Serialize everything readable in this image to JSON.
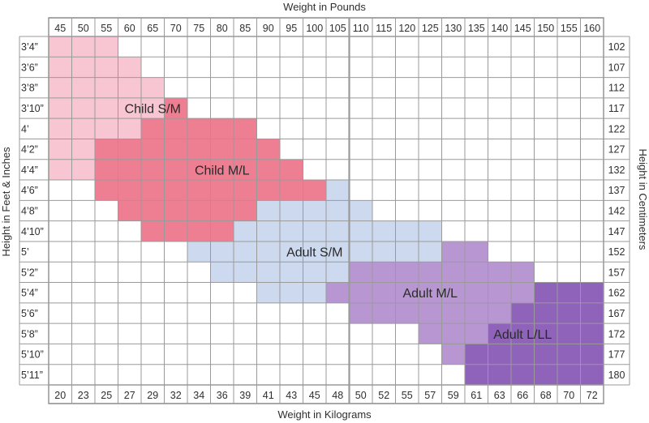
{
  "chart_data": {
    "type": "heatmap",
    "title": "",
    "top_axis_label": "Weight in Pounds",
    "bottom_axis_label": "Weight in Kilograms",
    "left_axis_label": "Height in Feet & Inches",
    "right_axis_label": "Height in Centimeters",
    "weight_lbs": [
      "45",
      "50",
      "55",
      "60",
      "65",
      "70",
      "75",
      "80",
      "85",
      "90",
      "95",
      "100",
      "105",
      "110",
      "115",
      "120",
      "125",
      "130",
      "135",
      "140",
      "145",
      "150",
      "155",
      "160"
    ],
    "weight_kg": [
      "20",
      "23",
      "25",
      "27",
      "29",
      "32",
      "34",
      "36",
      "39",
      "41",
      "43",
      "45",
      "48",
      "50",
      "52",
      "55",
      "57",
      "59",
      "61",
      "63",
      "66",
      "68",
      "70",
      "72"
    ],
    "height_ft_in": [
      "3’4”",
      "3’6”",
      "3’8”",
      "3’10”",
      "4’",
      "4’2”",
      "4’4”",
      "4’6”",
      "4’8”",
      "4’10”",
      "5’",
      "5’2”",
      "5’4”",
      "5’6”",
      "5’8”",
      "5’10”",
      "5’11”"
    ],
    "height_cm": [
      "102",
      "107",
      "112",
      "117",
      "122",
      "127",
      "132",
      "137",
      "142",
      "147",
      "152",
      "157",
      "162",
      "167",
      "172",
      "177",
      "180"
    ],
    "sizes": [
      {
        "name": "Child S/M",
        "color": "#f7c6d2",
        "label_anchor": {
          "weight_lbs": 65,
          "height": "3’10”"
        },
        "rows": [
          [
            0,
            0,
            2
          ],
          [
            1,
            0,
            3
          ],
          [
            2,
            0,
            4
          ],
          [
            3,
            0,
            4
          ],
          [
            4,
            0,
            3
          ],
          [
            5,
            0,
            1
          ],
          [
            6,
            0,
            1
          ]
        ]
      },
      {
        "name": "Child M/L",
        "color": "#ee7f92",
        "label_anchor": {
          "weight_lbs": 80,
          "height": "4’4”"
        },
        "rows": [
          [
            3,
            5,
            5
          ],
          [
            4,
            4,
            8
          ],
          [
            5,
            2,
            9
          ],
          [
            6,
            2,
            10
          ],
          [
            7,
            2,
            11
          ],
          [
            8,
            3,
            11
          ],
          [
            9,
            4,
            7
          ]
        ]
      },
      {
        "name": "Adult S/M",
        "color": "#ccd9ef",
        "label_anchor": {
          "weight_lbs": 100,
          "height": "5’"
        },
        "rows": [
          [
            7,
            12,
            12
          ],
          [
            8,
            9,
            13
          ],
          [
            9,
            8,
            16
          ],
          [
            10,
            6,
            16
          ],
          [
            11,
            7,
            13
          ],
          [
            12,
            9,
            11
          ]
        ]
      },
      {
        "name": "Adult M/L",
        "color": "#b896d1",
        "label_anchor": {
          "weight_lbs": 125,
          "height": "5’4”"
        },
        "rows": [
          [
            10,
            17,
            18
          ],
          [
            11,
            13,
            20
          ],
          [
            12,
            12,
            20
          ],
          [
            13,
            13,
            19
          ],
          [
            14,
            16,
            18
          ],
          [
            15,
            17,
            17
          ]
        ]
      },
      {
        "name": "Adult L/LL",
        "color": "#8f63ba",
        "label_anchor": {
          "weight_lbs": 145,
          "height": "5’8”"
        },
        "rows": [
          [
            12,
            21,
            23
          ],
          [
            13,
            20,
            23
          ],
          [
            14,
            19,
            23
          ],
          [
            15,
            18,
            23
          ],
          [
            16,
            18,
            23
          ]
        ]
      }
    ]
  }
}
